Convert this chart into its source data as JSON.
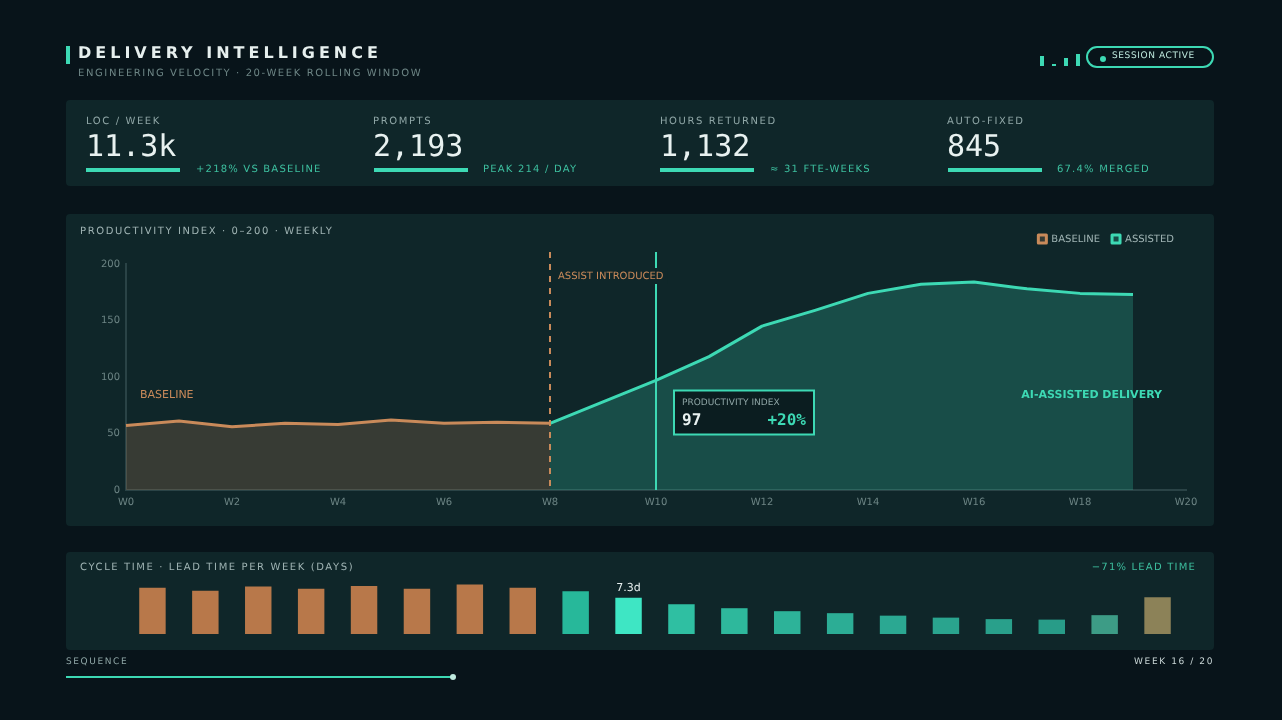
{
  "chart_data": [
    {
      "type": "other",
      "title": "DELIVERY INTELLIGENCE",
      "subtitle": "ENGINEERING VELOCITY · 20-WEEK ROLLING WINDOW",
      "annotations": [
        "SESSION ACTIVE",
        "LOC / WEEK",
        "11.3k",
        "+218% VS BASELINE",
        "PROMPTS",
        "2,193",
        "PEAK 214 / DAY",
        "HOURS RETURNED",
        "1,132",
        "≈ 31 FTE-WEEKS",
        "AUTO-FIXED",
        "845",
        "67.4% MERGED"
      ]
    },
    {
      "type": "area",
      "title": "PRODUCTIVITY INDEX · 0–200 · WEEKLY",
      "categories": [
        "W0",
        null,
        "W2",
        null,
        "W4",
        null,
        "W6",
        null,
        "W8",
        null,
        "W10",
        null,
        "W12",
        null,
        "W14",
        null,
        "W16",
        null,
        "W18",
        null,
        "W20"
      ],
      "ylim": [
        0,
        200
      ],
      "yticks": [
        0,
        50,
        100,
        150,
        200
      ],
      "legend": "top right",
      "series": [
        {
          "name": "BASELINE",
          "color": "#c98a5a",
          "values": [
            57,
            61,
            56,
            59,
            58,
            62,
            59,
            60,
            59,
            null,
            null,
            null,
            null,
            null,
            null,
            null,
            null,
            null,
            null,
            null,
            null
          ]
        },
        {
          "name": "ASSISTED",
          "color": "#3dd9b4",
          "values": [
            null,
            null,
            null,
            null,
            null,
            null,
            null,
            null,
            59,
            78,
            97,
            118,
            145,
            159,
            174,
            182,
            184,
            178,
            174,
            173,
            null
          ]
        }
      ],
      "ref_lines": [
        {
          "axis": "x",
          "value": "W8",
          "label": "ASSIST INTRODUCED",
          "color": "#c98a5a",
          "line_style": "dashed"
        },
        {
          "axis": "x",
          "value": "W10",
          "color": "#3dd9b4"
        }
      ],
      "annotations": [
        "BASELINE",
        "PRODUCTIVITY INDEX",
        "97",
        "+20%",
        "AI-ASSISTED DELIVERY"
      ]
    },
    {
      "type": "bar",
      "title": "CYCLE TIME · LEAD TIME PER WEEK (DAYS)",
      "categories": [
        null,
        null,
        null,
        null,
        null,
        null,
        null,
        null,
        null,
        null,
        null,
        null,
        null,
        null,
        null,
        null,
        null,
        null,
        null,
        null
      ],
      "values": [
        9.3,
        8.7,
        9.6,
        9.1,
        9.7,
        9.1,
        10,
        9.3,
        8.6,
        7.3,
        6.0,
        5.2,
        4.6,
        4.2,
        3.7,
        3.3,
        3.0,
        2.9,
        3.8,
        7.4
      ],
      "colors": [
        "#b8784a",
        "#b8784a",
        "#b8784a",
        "#b8784a",
        "#b8784a",
        "#b8784a",
        "#b8784a",
        "#b8784a",
        "#27b89a",
        "#3ee6c4",
        "#2fbfa2",
        "#2eb89c",
        "#2db399",
        "#2cad95",
        "#2ba892",
        "#2aa48e",
        "#29a08b",
        "#289c88",
        "#3d9c86",
        "#8c8258"
      ],
      "value_labels": [
        null,
        null,
        null,
        null,
        null,
        null,
        null,
        null,
        null,
        "7.3d",
        null,
        null,
        null,
        null,
        null,
        null,
        null,
        null,
        null,
        null
      ],
      "annotations": [
        "−71% LEAD TIME",
        "SEQUENCE",
        "WEEK 16 / 20"
      ]
    }
  ]
}
